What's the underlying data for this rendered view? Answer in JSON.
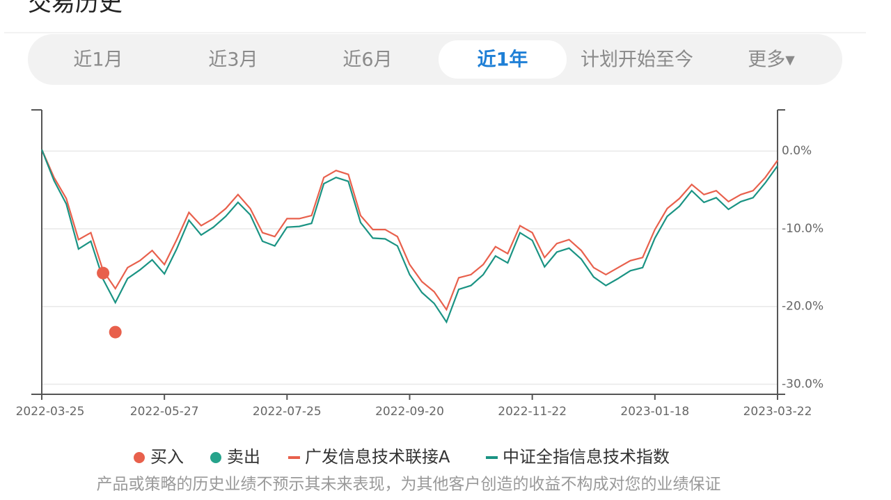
{
  "header": {
    "title": "交易历史"
  },
  "tabs": [
    {
      "label": "近1月"
    },
    {
      "label": "近3月"
    },
    {
      "label": "近6月"
    },
    {
      "label": "近1年",
      "active": true
    },
    {
      "label": "计划开始至今"
    },
    {
      "label": "更多▾"
    }
  ],
  "chart_data": {
    "type": "line",
    "categories": [
      "2022-03-25",
      null,
      null,
      null,
      null,
      null,
      null,
      null,
      null,
      null,
      "2022-05-27",
      null,
      null,
      null,
      null,
      null,
      null,
      null,
      null,
      null,
      "2022-07-25",
      null,
      null,
      null,
      null,
      null,
      null,
      null,
      null,
      null,
      "2022-09-20",
      null,
      null,
      null,
      null,
      null,
      null,
      null,
      null,
      null,
      "2022-11-22",
      null,
      null,
      null,
      null,
      null,
      null,
      null,
      null,
      null,
      "2023-01-18",
      null,
      null,
      null,
      null,
      null,
      null,
      null,
      null,
      null,
      "2023-03-22"
    ],
    "ylim": [
      -31.3,
      5.3
    ],
    "yticks": [
      {
        "value": 0,
        "label": "0.0%"
      },
      {
        "value": -10,
        "label": "-10.0%"
      },
      {
        "value": -20,
        "label": "-20.0%"
      },
      {
        "value": -30,
        "label": "-30.0%"
      }
    ],
    "grid": true,
    "series": [
      {
        "name": "买入",
        "color": "#e8604c",
        "mark": "dot",
        "values": [
          null,
          null,
          null,
          null,
          null,
          -15.7,
          -23.3,
          null,
          null,
          null,
          null,
          null,
          null,
          null,
          null,
          null,
          null,
          null,
          null,
          null,
          null,
          null,
          null,
          null,
          null,
          null,
          null,
          null,
          null,
          null,
          null,
          null,
          null,
          null,
          null,
          null,
          null,
          null,
          null,
          null,
          null,
          null,
          null,
          null,
          null,
          null,
          null,
          null,
          null,
          null,
          null,
          null,
          null,
          null,
          null,
          null,
          null,
          null,
          null,
          null,
          null
        ]
      },
      {
        "name": "卖出",
        "color": "#26a38b",
        "mark": "dot",
        "values": [
          null,
          null,
          null,
          null,
          null,
          null,
          null,
          null,
          null,
          null,
          null,
          null,
          null,
          null,
          null,
          null,
          null,
          null,
          null,
          null,
          null,
          null,
          null,
          null,
          null,
          null,
          null,
          null,
          null,
          null,
          null,
          null,
          null,
          null,
          null,
          null,
          null,
          null,
          null,
          null,
          null,
          null,
          null,
          null,
          null,
          null,
          null,
          null,
          null,
          null,
          null,
          null,
          null,
          null,
          null,
          null,
          null,
          null,
          null,
          null,
          null
        ]
      },
      {
        "name": "广发信息技术联接A",
        "color": "#e8604c",
        "mark": "line",
        "values": [
          0.2,
          -3.4,
          -6.1,
          -11.4,
          -10.5,
          -15.4,
          -17.7,
          -15.0,
          -14.1,
          -12.8,
          -14.6,
          -11.4,
          -7.9,
          -9.6,
          -8.7,
          -7.4,
          -5.6,
          -7.4,
          -10.5,
          -11.0,
          -8.7,
          -8.7,
          -8.3,
          -3.4,
          -2.5,
          -3.0,
          -8.3,
          -10.1,
          -10.1,
          -11.0,
          -14.6,
          -16.8,
          -18.1,
          -20.4,
          -16.3,
          -15.9,
          -14.6,
          -12.3,
          -13.2,
          -9.6,
          -10.5,
          -13.7,
          -11.9,
          -11.4,
          -12.8,
          -15.0,
          -15.9,
          -15.0,
          -14.1,
          -13.7,
          -10.1,
          -7.4,
          -6.1,
          -4.3,
          -5.6,
          -5.1,
          -6.5,
          -5.6,
          -5.1,
          -3.4,
          -1.2
        ]
      },
      {
        "name": "中证全指信息技术指数",
        "color": "#1a9383",
        "mark": "line",
        "values": [
          0.2,
          -3.8,
          -6.8,
          -12.6,
          -11.6,
          -16.5,
          -19.5,
          -16.4,
          -15.3,
          -14.0,
          -15.8,
          -12.6,
          -8.9,
          -10.8,
          -9.8,
          -8.4,
          -6.6,
          -8.2,
          -11.6,
          -12.2,
          -9.8,
          -9.7,
          -9.3,
          -4.2,
          -3.4,
          -3.9,
          -9.2,
          -11.2,
          -11.3,
          -12.2,
          -15.9,
          -18.2,
          -19.6,
          -22.0,
          -17.8,
          -17.3,
          -15.9,
          -13.5,
          -14.4,
          -10.5,
          -11.5,
          -14.9,
          -13.0,
          -12.5,
          -13.9,
          -16.2,
          -17.3,
          -16.4,
          -15.4,
          -15.0,
          -11.2,
          -8.4,
          -7.1,
          -5.1,
          -6.6,
          -6.0,
          -7.5,
          -6.5,
          -6.0,
          -4.1,
          -1.9
        ]
      }
    ]
  },
  "footer": {
    "disclaimer": "产品或策略的历史业绩不预示其未来表现，为其他客户创造的收益不构成对您的业绩保证"
  }
}
